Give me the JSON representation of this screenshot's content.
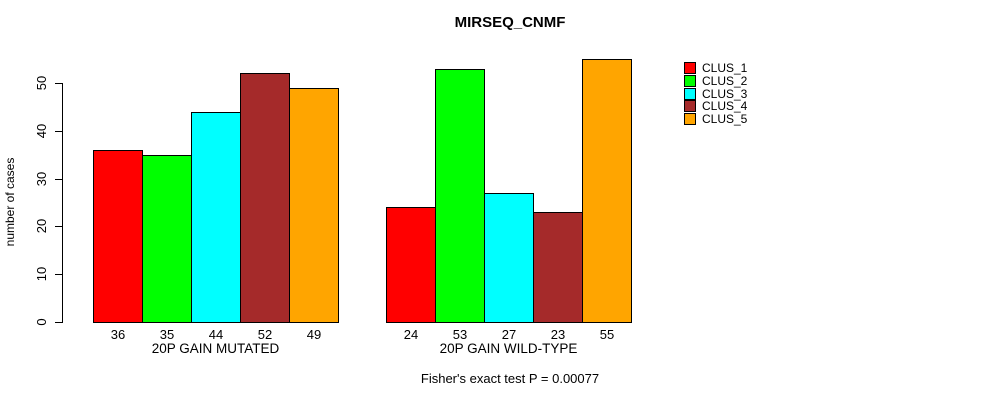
{
  "chart_data": {
    "type": "bar",
    "title": "MIRSEQ_CNMF",
    "xlabel": "",
    "ylabel": "number of cases",
    "ylim": [
      0,
      55
    ],
    "yticks": [
      0,
      10,
      20,
      30,
      40,
      50
    ],
    "grid": false,
    "legend_position": "right",
    "categories": [
      "20P GAIN MUTATED",
      "20P GAIN WILD-TYPE"
    ],
    "series": [
      {
        "name": "CLUS_1",
        "color": "#FF0000",
        "values": [
          36,
          24
        ]
      },
      {
        "name": "CLUS_2",
        "color": "#00FF00",
        "values": [
          35,
          53
        ]
      },
      {
        "name": "CLUS_3",
        "color": "#00FFFF",
        "values": [
          44,
          27
        ]
      },
      {
        "name": "CLUS_4",
        "color": "#A52A2A",
        "values": [
          52,
          23
        ]
      },
      {
        "name": "CLUS_5",
        "color": "#FFA500",
        "values": [
          49,
          55
        ]
      }
    ],
    "bar_value_labels": true,
    "annotation": "Fisher's exact test P = 0.00077"
  }
}
